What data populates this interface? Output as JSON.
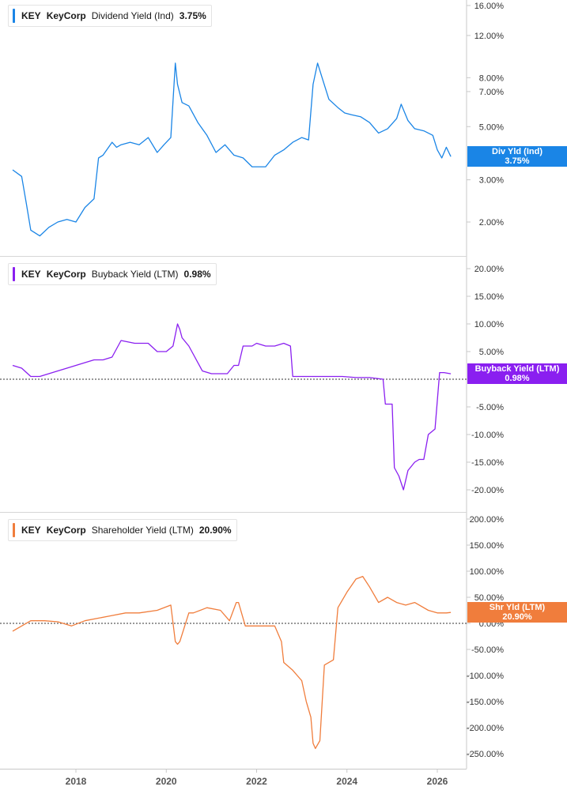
{
  "panels": [
    {
      "ticker": "KEY",
      "company": "KeyCorp",
      "metric": "Dividend Yield (Ind)",
      "value": "3.75%",
      "tag_line1": "Div Yld (Ind)",
      "tag_line2": "3.75%",
      "color": "#1a85e6",
      "y_ticks": [
        "16.00%",
        "12.00%",
        "8.00%",
        "7.00%",
        "5.00%",
        "3.00%",
        "2.00%"
      ]
    },
    {
      "ticker": "KEY",
      "company": "KeyCorp",
      "metric": "Buyback Yield (LTM)",
      "value": "0.98%",
      "tag_line1": "Buyback Yield (LTM)",
      "tag_line2": "0.98%",
      "color": "#8a1ff0",
      "y_ticks": [
        "20.00%",
        "15.00%",
        "10.00%",
        "5.00%",
        "-5.00%",
        "-10.00%",
        "-15.00%",
        "-20.00%"
      ]
    },
    {
      "ticker": "KEY",
      "company": "KeyCorp",
      "metric": "Shareholder Yield (LTM)",
      "value": "20.90%",
      "tag_line1": "Shr Yld (LTM)",
      "tag_line2": "20.90%",
      "color": "#f07d3c",
      "y_ticks": [
        "200.00%",
        "150.00%",
        "100.00%",
        "50.00%",
        "0.00%",
        "-50.00%",
        "-100.00%",
        "-150.00%",
        "-200.00%",
        "-250.00%"
      ]
    }
  ],
  "x_ticks": [
    "2018",
    "2020",
    "2022",
    "2024",
    "2026"
  ],
  "chart_data": [
    {
      "type": "line",
      "y_scale": "log",
      "ylim": [
        1.5,
        17
      ],
      "x_range": [
        2016.6,
        2026.5
      ],
      "series": [
        {
          "name": "Dividend Yield (Ind)",
          "x": [
            2016.6,
            2016.8,
            2016.9,
            2017.0,
            2017.2,
            2017.4,
            2017.6,
            2017.8,
            2018.0,
            2018.2,
            2018.4,
            2018.5,
            2018.6,
            2018.8,
            2018.9,
            2019.0,
            2019.2,
            2019.4,
            2019.6,
            2019.8,
            2019.95,
            2020.1,
            2020.2,
            2020.25,
            2020.35,
            2020.5,
            2020.7,
            2020.9,
            2021.1,
            2021.3,
            2021.5,
            2021.7,
            2021.9,
            2022.05,
            2022.2,
            2022.4,
            2022.6,
            2022.8,
            2023.0,
            2023.15,
            2023.25,
            2023.35,
            2023.45,
            2023.6,
            2023.8,
            2023.95,
            2024.1,
            2024.3,
            2024.5,
            2024.7,
            2024.9,
            2025.1,
            2025.2,
            2025.35,
            2025.5,
            2025.7,
            2025.9,
            2026.0,
            2026.1,
            2026.2,
            2026.3
          ],
          "y": [
            3.3,
            3.1,
            2.4,
            1.85,
            1.75,
            1.9,
            2.0,
            2.05,
            2.0,
            2.3,
            2.5,
            3.7,
            3.8,
            4.3,
            4.1,
            4.2,
            4.3,
            4.2,
            4.5,
            3.9,
            4.2,
            4.5,
            9.2,
            7.5,
            6.3,
            6.1,
            5.2,
            4.6,
            3.9,
            4.2,
            3.8,
            3.7,
            3.4,
            3.4,
            3.4,
            3.8,
            4.0,
            4.3,
            4.5,
            4.4,
            7.5,
            9.2,
            8.0,
            6.5,
            6.0,
            5.7,
            5.6,
            5.5,
            5.2,
            4.7,
            4.9,
            5.4,
            6.2,
            5.3,
            4.9,
            4.8,
            4.6,
            4.0,
            3.7,
            4.1,
            3.75
          ]
        }
      ]
    },
    {
      "type": "line",
      "ylim": [
        -22,
        21
      ],
      "x_range": [
        2016.6,
        2026.5
      ],
      "series": [
        {
          "name": "Buyback Yield (LTM)",
          "x": [
            2016.6,
            2016.8,
            2017.0,
            2017.2,
            2017.4,
            2017.6,
            2017.8,
            2018.0,
            2018.2,
            2018.4,
            2018.6,
            2018.8,
            2019.0,
            2019.3,
            2019.6,
            2019.8,
            2020.0,
            2020.15,
            2020.25,
            2020.3,
            2020.35,
            2020.5,
            2020.6,
            2020.8,
            2021.0,
            2021.2,
            2021.35,
            2021.5,
            2021.6,
            2021.7,
            2021.9,
            2022.0,
            2022.2,
            2022.4,
            2022.6,
            2022.75,
            2022.8,
            2023.0,
            2023.3,
            2023.6,
            2023.9,
            2024.2,
            2024.5,
            2024.8,
            2024.85,
            2024.9,
            2025.0,
            2025.05,
            2025.15,
            2025.25,
            2025.35,
            2025.5,
            2025.6,
            2025.7,
            2025.8,
            2025.95,
            2026.05,
            2026.15,
            2026.3
          ],
          "y": [
            2.5,
            2.0,
            0.5,
            0.5,
            1.0,
            1.5,
            2.0,
            2.5,
            3.0,
            3.5,
            3.5,
            4.0,
            7.0,
            6.5,
            6.5,
            5.0,
            5.0,
            6.0,
            10.0,
            9.0,
            7.5,
            6.0,
            4.5,
            1.5,
            1.0,
            1.0,
            1.0,
            2.5,
            2.5,
            6.0,
            6.0,
            6.5,
            6.0,
            6.0,
            6.5,
            6.0,
            0.5,
            0.5,
            0.5,
            0.5,
            0.5,
            0.3,
            0.3,
            0.0,
            -4.5,
            -4.5,
            -4.5,
            -16.0,
            -17.5,
            -20.0,
            -16.5,
            -15.0,
            -14.5,
            -14.5,
            -10.0,
            -9.0,
            1.2,
            1.2,
            0.98
          ]
        }
      ]
    },
    {
      "type": "line",
      "ylim": [
        -260,
        210
      ],
      "x_range": [
        2016.6,
        2026.5
      ],
      "series": [
        {
          "name": "Shareholder Yield (LTM)",
          "x": [
            2016.6,
            2016.8,
            2017.0,
            2017.3,
            2017.6,
            2017.9,
            2018.2,
            2018.5,
            2018.8,
            2019.1,
            2019.4,
            2019.8,
            2020.1,
            2020.2,
            2020.25,
            2020.3,
            2020.5,
            2020.6,
            2020.9,
            2021.2,
            2021.4,
            2021.55,
            2021.6,
            2021.75,
            2022.1,
            2022.4,
            2022.55,
            2022.6,
            2022.8,
            2023.0,
            2023.1,
            2023.2,
            2023.25,
            2023.3,
            2023.4,
            2023.5,
            2023.7,
            2023.8,
            2024.0,
            2024.2,
            2024.35,
            2024.5,
            2024.7,
            2024.9,
            2025.1,
            2025.3,
            2025.5,
            2025.8,
            2026.0,
            2026.2,
            2026.3
          ],
          "y": [
            -15,
            -5,
            5,
            5,
            3,
            -5,
            5,
            10,
            15,
            20,
            20,
            25,
            35,
            -35,
            -40,
            -35,
            20,
            20,
            30,
            25,
            5,
            40,
            40,
            -5,
            -5,
            -5,
            -35,
            -75,
            -90,
            -110,
            -150,
            -180,
            -230,
            -240,
            -225,
            -80,
            -70,
            30,
            60,
            85,
            90,
            70,
            40,
            50,
            40,
            35,
            40,
            25,
            20,
            20,
            20.9
          ]
        }
      ]
    }
  ]
}
